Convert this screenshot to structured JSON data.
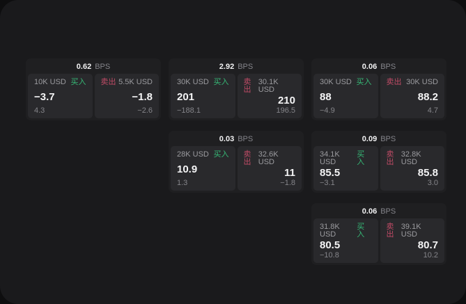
{
  "labels": {
    "bps": "BPS",
    "buy": "买入",
    "sell": "卖出"
  },
  "colors": {
    "buy_green": "#36b876",
    "sell_red": "#c04b66",
    "window_bg": "#1a1a1c",
    "card_bg": "#1f1f21",
    "panel_bg": "#29292c"
  },
  "cards": [
    {
      "col": 1,
      "row": 1,
      "bps": "0.62",
      "buy": {
        "notional": "10K USD",
        "value": "−3.7",
        "sub": "4.3"
      },
      "sell": {
        "notional": "5.5K USD",
        "value": "−1.8",
        "sub": "−2.6"
      }
    },
    {
      "col": 2,
      "row": 1,
      "bps": "2.92",
      "buy": {
        "notional": "30K USD",
        "value": "201",
        "sub": "−188.1"
      },
      "sell": {
        "notional": "30.1K USD",
        "value": "210",
        "sub": "196.5"
      }
    },
    {
      "col": 3,
      "row": 1,
      "bps": "0.06",
      "buy": {
        "notional": "30K USD",
        "value": "88",
        "sub": "−4.9"
      },
      "sell": {
        "notional": "30K USD",
        "value": "88.2",
        "sub": "4.7"
      }
    },
    {
      "col": 2,
      "row": 2,
      "bps": "0.03",
      "buy": {
        "notional": "28K USD",
        "value": "10.9",
        "sub": "1.3"
      },
      "sell": {
        "notional": "32.6K USD",
        "value": "11",
        "sub": "−1.8"
      }
    },
    {
      "col": 3,
      "row": 2,
      "bps": "0.09",
      "buy": {
        "notional": "34.1K USD",
        "value": "85.5",
        "sub": "−3.1"
      },
      "sell": {
        "notional": "32.8K USD",
        "value": "85.8",
        "sub": "3.0"
      }
    },
    {
      "col": 3,
      "row": 3,
      "bps": "0.06",
      "buy": {
        "notional": "31.8K USD",
        "value": "80.5",
        "sub": "−10.8"
      },
      "sell": {
        "notional": "39.1K USD",
        "value": "80.7",
        "sub": "10.2"
      }
    }
  ]
}
